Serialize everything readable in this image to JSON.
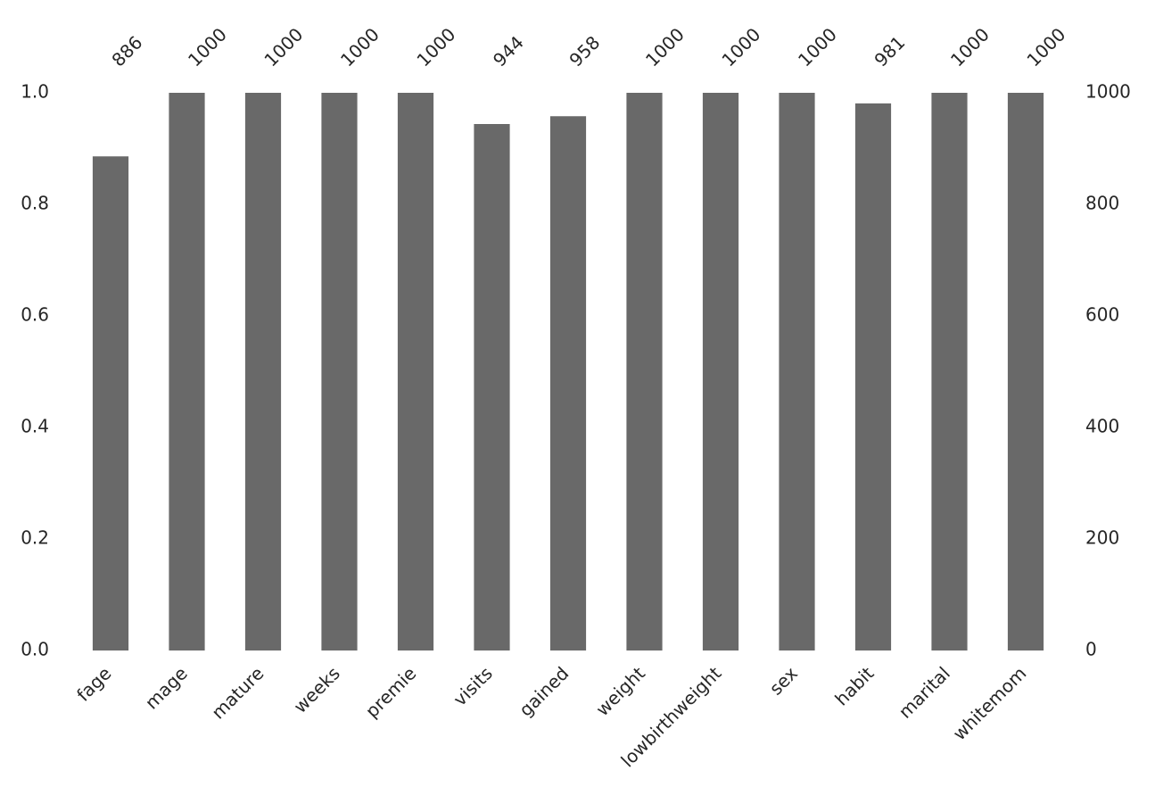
{
  "chart_data": {
    "type": "bar",
    "categories": [
      "fage",
      "mage",
      "mature",
      "weeks",
      "premie",
      "visits",
      "gained",
      "weight",
      "lowbirthweight",
      "sex",
      "habit",
      "marital",
      "whitemom"
    ],
    "series": [
      {
        "color": "#696969",
        "axis": "y2",
        "values": [
          886,
          1000,
          1000,
          1000,
          1000,
          944,
          958,
          1000,
          1000,
          1000,
          981,
          1000,
          1000
        ]
      }
    ],
    "ylim": [
      0,
      1
    ],
    "yticks": [
      {
        "value": 0,
        "label": "0.0"
      },
      0.2,
      0.4,
      0.6,
      0.8,
      {
        "value": 1,
        "label": "1.0"
      }
    ],
    "y2lim": [
      0,
      1000
    ],
    "y2ticks": [
      0,
      200,
      400,
      600,
      800,
      1000
    ],
    "grid": false
  }
}
